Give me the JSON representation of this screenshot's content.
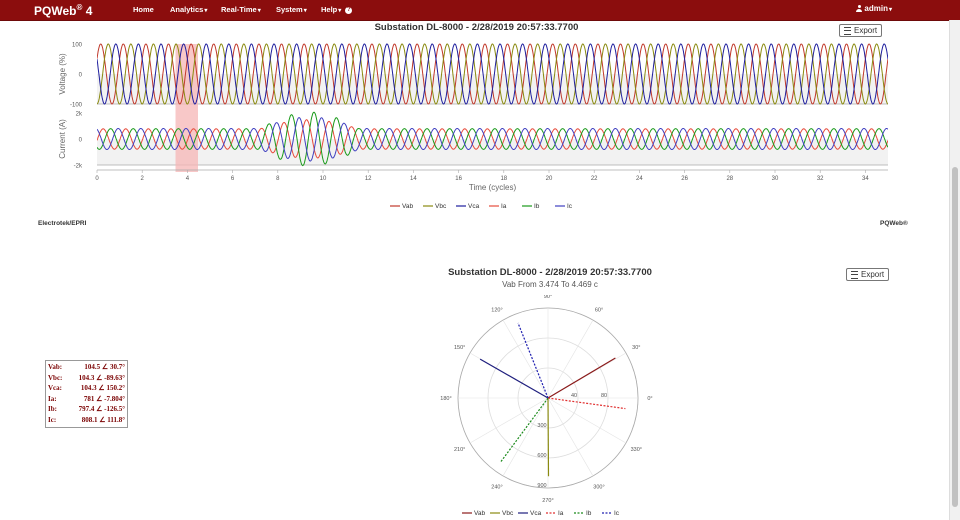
{
  "navbar": {
    "brand": "PQWeb",
    "brand_sup": "®",
    "brand_version": "4",
    "items": [
      {
        "label": "Home",
        "caret": false
      },
      {
        "label": "Analytics",
        "caret": true
      },
      {
        "label": "Real-Time",
        "caret": true
      },
      {
        "label": "System",
        "caret": true
      },
      {
        "label": "Help",
        "caret": true,
        "help_icon": true
      }
    ],
    "user": "admin"
  },
  "waveform": {
    "title": "Substation DL-8000 - 2/28/2019 20:57:33.7700",
    "export_label": "Export"
  },
  "footer": {
    "left": "Electrotek/EPRI",
    "right": "PQWeb®"
  },
  "phasor": {
    "title": "Substation DL-8000 - 2/28/2019 20:57:33.7700",
    "subtitle": "Vab From 3.474 To 4.469 c",
    "export_label": "Export",
    "table": [
      {
        "name": "Vab:",
        "value": "104.5 ∠ 30.7°"
      },
      {
        "name": "Vbc:",
        "value": "104.3 ∠ -89.63°"
      },
      {
        "name": "Vca:",
        "value": "104.3 ∠ 150.2°"
      },
      {
        "name": "Ia:",
        "value": "781 ∠ -7.804°"
      },
      {
        "name": "Ib:",
        "value": "797.4 ∠ -126.5°"
      },
      {
        "name": "Ic:",
        "value": "808.1 ∠ 111.8°"
      }
    ]
  },
  "chart_data": [
    {
      "type": "line",
      "title": "Substation DL-8000 - 2/28/2019 20:57:33.7700",
      "xlabel": "Time (cycles)",
      "xlim": [
        0,
        35
      ],
      "xticks": [
        "0",
        "2",
        "4",
        "6",
        "8",
        "10",
        "12",
        "14",
        "16",
        "18",
        "20",
        "22",
        "24",
        "26",
        "28",
        "30",
        "32",
        "34"
      ],
      "panels": [
        {
          "ylabel": "Voltage (%)",
          "ylim": [
            -100,
            100
          ],
          "yticks": [
            "100",
            "0",
            "-100"
          ]
        },
        {
          "ylabel": "Current (A)",
          "ylim": [
            -2000,
            2000
          ],
          "yticks": [
            "2k",
            "0",
            "-2k"
          ]
        }
      ],
      "highlight_cycles": [
        3.474,
        4.469
      ],
      "series": [
        {
          "name": "Vab",
          "color": "#c0392b",
          "panel": 0,
          "amplitude": 100,
          "phase_deg": 30.7
        },
        {
          "name": "Vbc",
          "color": "#8a8a10",
          "panel": 0,
          "amplitude": 100,
          "phase_deg": -89.63
        },
        {
          "name": "Vca",
          "color": "#1f1f9e",
          "panel": 0,
          "amplitude": 100,
          "phase_deg": 150.2
        },
        {
          "name": "Ia",
          "color": "#e74c3c",
          "panel": 1,
          "amplitude": 781,
          "phase_deg": -7.804
        },
        {
          "name": "Ib",
          "color": "#1a9a1a",
          "panel": 1,
          "amplitude": 797.4,
          "phase_deg": -126.5
        },
        {
          "name": "Ic",
          "color": "#4040c0",
          "panel": 1,
          "amplitude": 808.1,
          "phase_deg": 111.8
        }
      ],
      "legend": "bottom"
    },
    {
      "type": "polar",
      "title": "Substation DL-8000 - 2/28/2019 20:57:33.7700",
      "subtitle": "Vab From 3.474 To 4.469 c",
      "angle_ticks": [
        "0°",
        "30°",
        "60°",
        "90°",
        "120°",
        "150°",
        "180°",
        "210°",
        "240°",
        "270°",
        "300°",
        "330°"
      ],
      "voltage_radial_ticks": [
        "40",
        "80"
      ],
      "current_radial_ticks": [
        "300",
        "600",
        "900"
      ],
      "series": [
        {
          "name": "Vab",
          "magnitude": 104.5,
          "angle_deg": 30.7,
          "color": "#8b1a1a",
          "dash": false
        },
        {
          "name": "Vbc",
          "magnitude": 104.3,
          "angle_deg": -89.63,
          "color": "#8a8a10",
          "dash": false
        },
        {
          "name": "Vca",
          "magnitude": 104.3,
          "angle_deg": 150.2,
          "color": "#1f1f7e",
          "dash": false
        },
        {
          "name": "Ia",
          "magnitude": 781,
          "angle_deg": -7.804,
          "color": "#e03030",
          "dash": true
        },
        {
          "name": "Ib",
          "magnitude": 797.4,
          "angle_deg": -126.5,
          "color": "#1a8a1a",
          "dash": true
        },
        {
          "name": "Ic",
          "magnitude": 808.1,
          "angle_deg": 111.8,
          "color": "#2020b0",
          "dash": true
        }
      ],
      "legend": "bottom"
    }
  ]
}
